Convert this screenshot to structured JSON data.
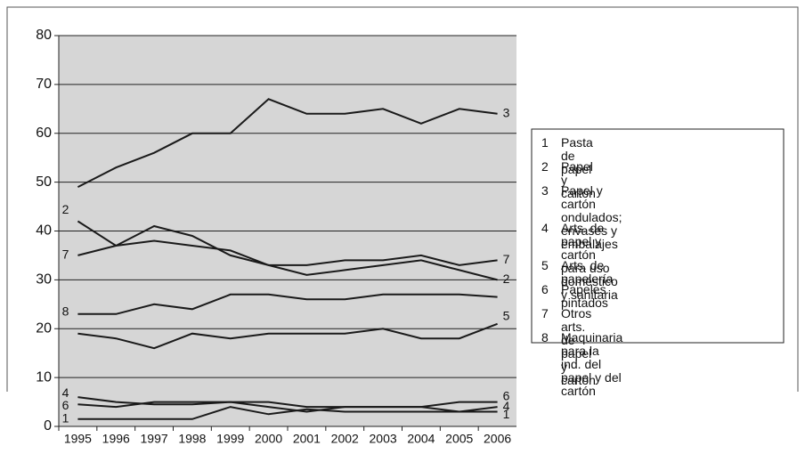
{
  "chart_data": {
    "type": "line",
    "categories": [
      "1995",
      "1996",
      "1997",
      "1998",
      "1999",
      "2000",
      "2001",
      "2002",
      "2003",
      "2004",
      "2005",
      "2006"
    ],
    "ylim": [
      0,
      80
    ],
    "yticks": [
      0,
      10,
      20,
      30,
      40,
      50,
      60,
      70,
      80
    ],
    "grid": true,
    "series": [
      {
        "label": "1",
        "name": "Pasta de papel",
        "color": "#1a1a1a",
        "label_at": [
          "start",
          "end"
        ],
        "values": [
          1.5,
          1.5,
          1.5,
          1.5,
          4,
          2.5,
          3.5,
          3,
          3,
          3,
          3,
          3
        ]
      },
      {
        "label": "2",
        "name": "Papel y cartón",
        "color": "#1a1a1a",
        "label_at": [
          "start",
          "end"
        ],
        "values": [
          42,
          37,
          41,
          39,
          35,
          33,
          31,
          32,
          33,
          34,
          32,
          30
        ]
      },
      {
        "label": "3",
        "name": "Papel y cartón ondulados;\nenvases y embalajes",
        "color": "#1a1a1a",
        "label_at": [
          "end"
        ],
        "values": [
          49,
          53,
          56,
          60,
          60,
          67,
          64,
          64,
          65,
          62,
          65,
          64
        ]
      },
      {
        "label": "4",
        "name": "Arts. de papel y cartón\npara uso doméstico y sanitaria",
        "color": "#1a1a1a",
        "label_at": [
          "start",
          "end"
        ],
        "values": [
          6,
          5,
          4.5,
          4.5,
          5,
          4,
          3,
          4,
          4,
          4,
          3,
          4
        ]
      },
      {
        "label": "5",
        "name": "Arts. de papelería",
        "color": "#1a1a1a",
        "label_at": [
          "end"
        ],
        "values": [
          19,
          18,
          16,
          19,
          18,
          19,
          19,
          19,
          20,
          18,
          18,
          21
        ]
      },
      {
        "label": "6",
        "name": "Papeles pintados",
        "color": "#1a1a1a",
        "label_at": [
          "start",
          "end"
        ],
        "values": [
          4.5,
          4,
          5,
          5,
          5,
          5,
          4,
          4,
          4,
          4,
          5,
          5
        ]
      },
      {
        "label": "7",
        "name": "Otros arts. de papel y cartón",
        "color": "#1a1a1a",
        "label_at": [
          "start",
          "end"
        ],
        "values": [
          35,
          37,
          38,
          37,
          36,
          33,
          33,
          34,
          34,
          35,
          33,
          34
        ]
      },
      {
        "label": "8",
        "name": "Maquinaria para la\nind. del papel y del cartón",
        "color": "#1a1a1a",
        "label_at": [
          "start"
        ],
        "values": [
          23,
          23,
          25,
          24,
          27,
          27,
          26,
          26,
          27,
          27,
          27,
          26.5
        ]
      }
    ]
  }
}
